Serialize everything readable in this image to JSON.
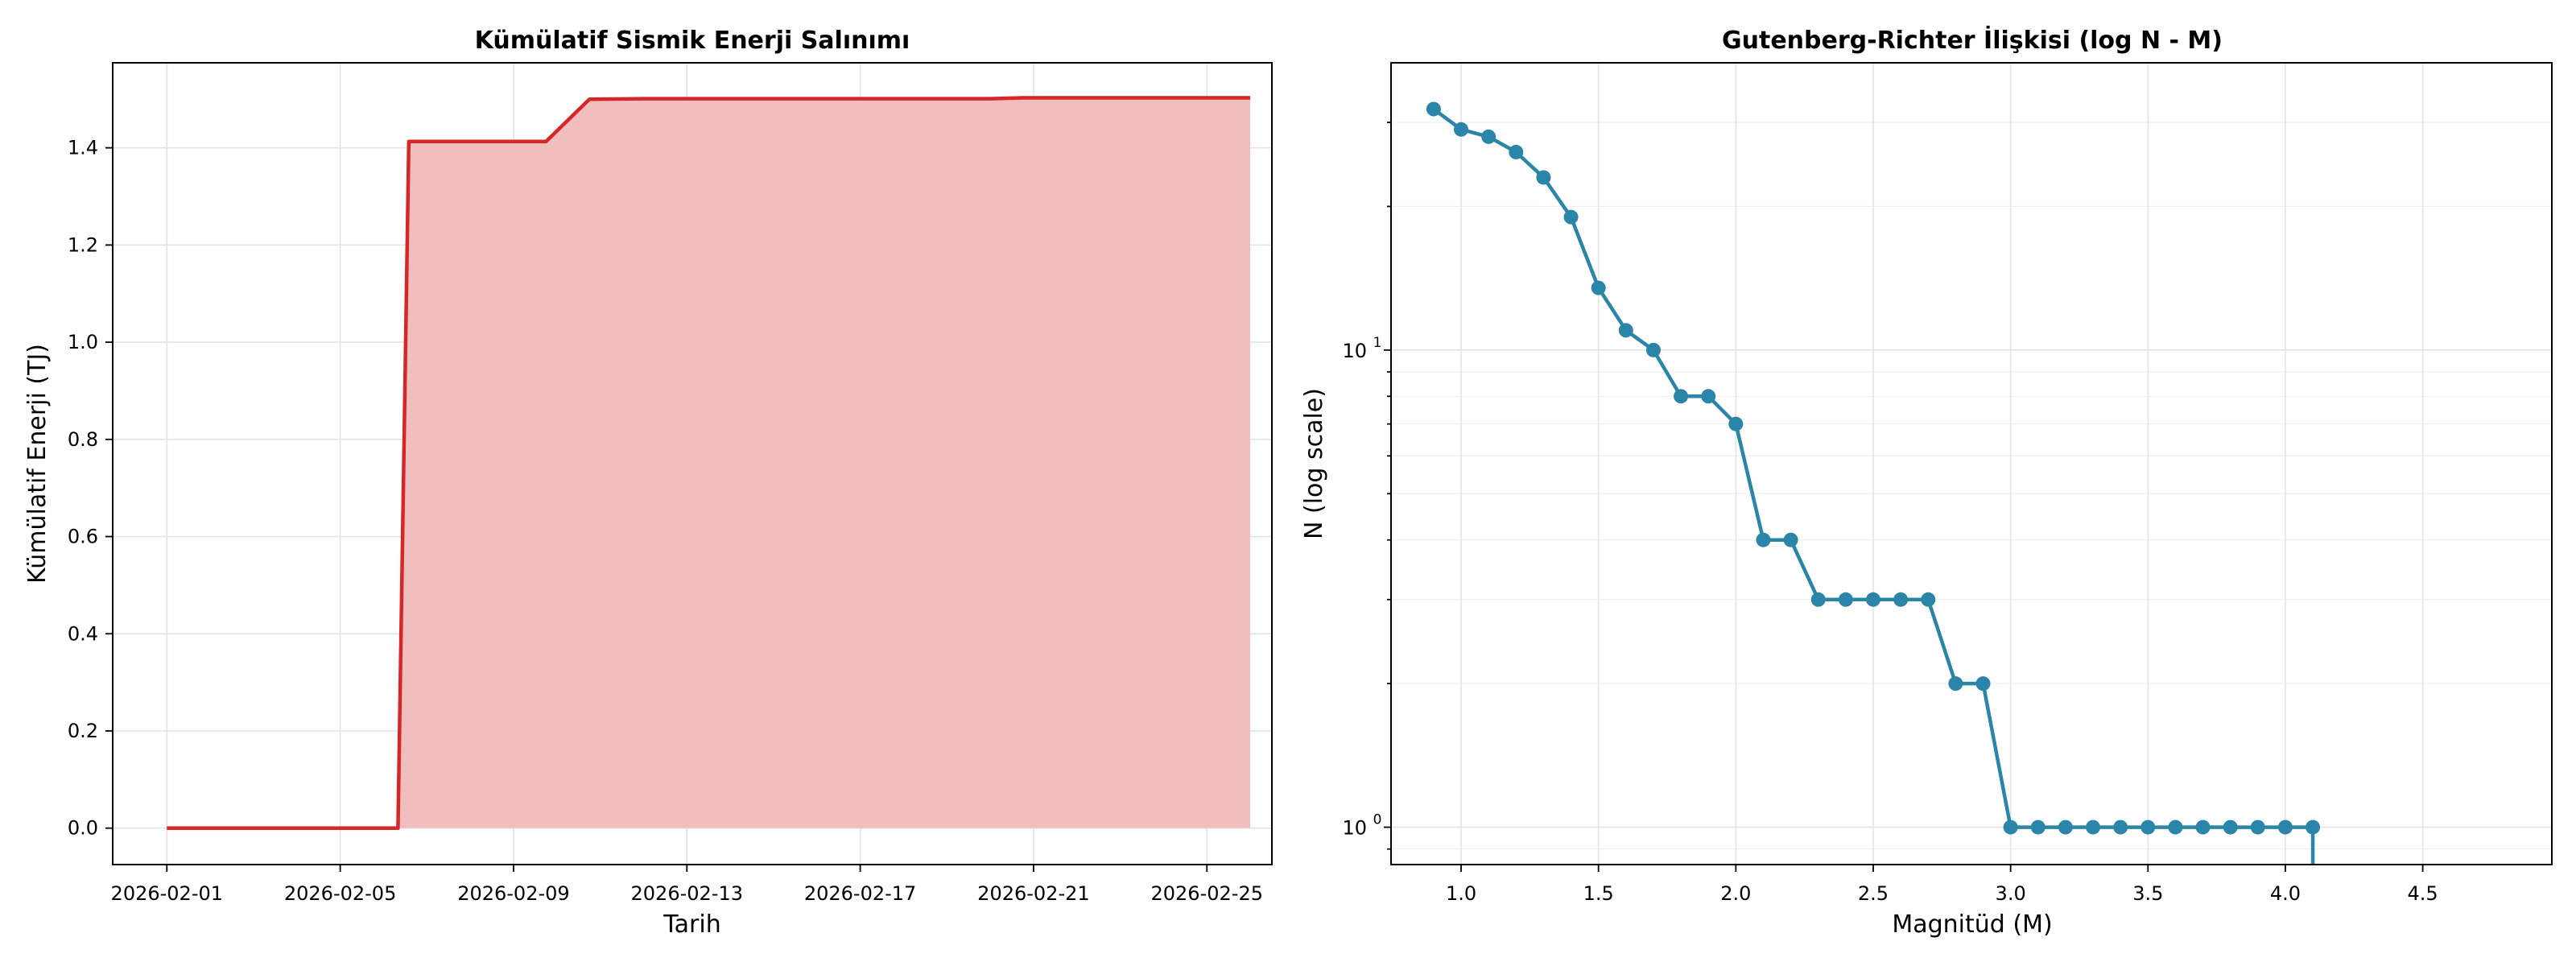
{
  "chart_data": [
    {
      "type": "area",
      "title": "Kümülatif Sismik Enerji Salınımı",
      "xlabel": "Tarih",
      "ylabel": "Kümülatif Enerji (TJ)",
      "x_ticks": [
        "2026-02-01",
        "2026-02-05",
        "2026-02-09",
        "2026-02-13",
        "2026-02-17",
        "2026-02-21",
        "2026-02-25"
      ],
      "y_ticks": [
        "0.0",
        "0.2",
        "0.4",
        "0.6",
        "0.8",
        "1.0",
        "1.2",
        "1.4"
      ],
      "xlim": [
        "2025-01-31",
        "2025-02-27"
      ],
      "ylim": [
        -0.075,
        1.575
      ],
      "grid": true,
      "line_color": "#d62728",
      "fill_color": "#f1bebe",
      "x": [
        "2026-02-01",
        "2026-02-02",
        "2026-02-03",
        "2026-02-04",
        "2026-02-05",
        "2026-02-06 08:00",
        "2026-02-06 14:00",
        "2026-02-07",
        "2026-02-08",
        "2026-02-09",
        "2026-02-09 18:00",
        "2026-02-10 18:00",
        "2026-02-12",
        "2026-02-14",
        "2026-02-16",
        "2026-02-18",
        "2026-02-20",
        "2026-02-20 18:00",
        "2026-02-22",
        "2026-02-24",
        "2026-02-25",
        "2026-02-26"
      ],
      "values": [
        0.0,
        0.0,
        0.0,
        0.0,
        0.0,
        0.0,
        1.413,
        1.413,
        1.413,
        1.413,
        1.413,
        1.5,
        1.501,
        1.501,
        1.501,
        1.501,
        1.501,
        1.503,
        1.503,
        1.503,
        1.503,
        1.503
      ]
    },
    {
      "type": "line",
      "title": "Gutenberg-Richter İlişkisi (log N - M)",
      "xlabel": "Magnitüd (M)",
      "ylabel": "N (log scale)",
      "x_ticks": [
        "1.0",
        "1.5",
        "2.0",
        "2.5",
        "3.0",
        "3.5",
        "4.0",
        "4.5"
      ],
      "y_ticks": [
        {
          "base": "10",
          "exp": "0",
          "value": 1
        },
        {
          "base": "10",
          "exp": "1",
          "value": 10
        }
      ],
      "xlim": [
        0.745,
        4.97
      ],
      "ylim": [
        0.835,
        40.0
      ],
      "yscale": "log",
      "grid": true,
      "line_color": "#2a85a8",
      "marker": "circle",
      "x": [
        0.9,
        1.0,
        1.1,
        1.2,
        1.3,
        1.4,
        1.5,
        1.6,
        1.7,
        1.8,
        1.9,
        2.0,
        2.1,
        2.2,
        2.3,
        2.4,
        2.5,
        2.6,
        2.7,
        2.8,
        2.9,
        3.0,
        3.1,
        3.2,
        3.3,
        3.4,
        3.5,
        3.6,
        3.7,
        3.8,
        3.9,
        4.0,
        4.1
      ],
      "values": [
        32,
        29,
        28,
        26,
        23,
        19,
        13.5,
        11,
        10,
        8,
        8,
        7,
        4,
        4,
        3,
        3,
        3,
        3,
        3,
        2,
        2,
        1,
        1,
        1,
        1,
        1,
        1,
        1,
        1,
        1,
        1,
        1,
        1
      ],
      "tail_to_zero_at": 4.1
    }
  ]
}
